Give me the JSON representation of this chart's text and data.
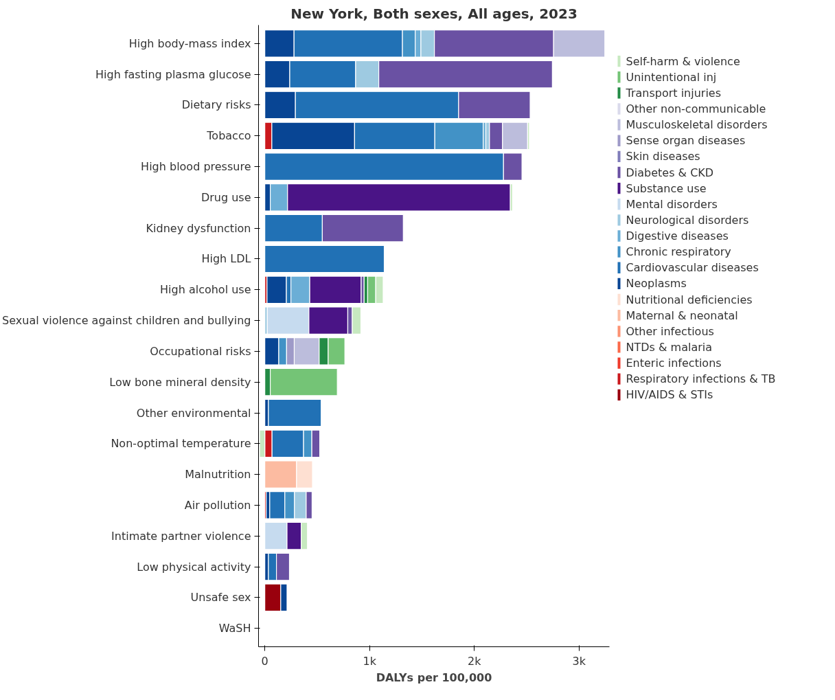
{
  "chart_data": {
    "type": "bar",
    "orientation": "horizontal",
    "stacked": true,
    "title": "New York, Both sexes, All ages, 2023",
    "xlabel": "DALYs per 100,000",
    "categories": [
      "High body-mass index",
      "High fasting plasma glucose",
      "Dietary risks",
      "Tobacco",
      "High blood pressure",
      "Drug use",
      "Kidney dysfunction",
      "High LDL",
      "High alcohol use",
      "Sexual violence against children and bullying",
      "Occupational risks",
      "Low bone mineral density",
      "Other environmental",
      "Non-optimal temperature",
      "Malnutrition",
      "Air pollution",
      "Intimate partner violence",
      "Low physical activity",
      "Unsafe sex",
      "WaSH"
    ],
    "xlim": [
      -60,
      3290
    ],
    "xticks": [
      0,
      {
        "value": 1000,
        "label": "1k"
      },
      {
        "value": 2000,
        "label": "2k"
      },
      {
        "value": 3000,
        "label": "3k"
      }
    ],
    "grid": false,
    "legend": "top right",
    "series": [
      {
        "name": "HIV/AIDS & STIs",
        "color": "#99000d",
        "values": [
          null,
          null,
          null,
          null,
          null,
          null,
          null,
          null,
          null,
          null,
          null,
          null,
          null,
          null,
          null,
          null,
          null,
          null,
          152,
          null
        ]
      },
      {
        "name": "Respiratory infections & TB",
        "color": "#cb181d",
        "values": [
          null,
          null,
          null,
          67,
          null,
          null,
          null,
          null,
          21,
          null,
          null,
          null,
          null,
          69,
          null,
          13,
          null,
          null,
          null,
          null
        ]
      },
      {
        "name": "Enteric infections",
        "color": "#ef3b2c",
        "values": [
          null,
          null,
          null,
          null,
          null,
          null,
          null,
          null,
          null,
          null,
          null,
          null,
          null,
          null,
          null,
          null,
          null,
          null,
          null,
          null
        ]
      },
      {
        "name": "NTDs & malaria",
        "color": "#fb6a4a",
        "values": [
          null,
          null,
          null,
          null,
          null,
          null,
          null,
          null,
          null,
          null,
          null,
          null,
          null,
          null,
          null,
          null,
          null,
          null,
          null,
          null
        ]
      },
      {
        "name": "Other infectious",
        "color": "#fc9272",
        "values": [
          null,
          null,
          null,
          null,
          null,
          null,
          null,
          null,
          null,
          null,
          null,
          null,
          null,
          null,
          null,
          null,
          null,
          null,
          null,
          null
        ]
      },
      {
        "name": "Maternal & neonatal",
        "color": "#fcbba1",
        "values": [
          null,
          null,
          null,
          null,
          null,
          null,
          null,
          null,
          null,
          null,
          null,
          null,
          null,
          null,
          303,
          null,
          null,
          null,
          null,
          null
        ]
      },
      {
        "name": "Nutritional deficiencies",
        "color": "#fee0d2",
        "values": [
          null,
          null,
          null,
          null,
          null,
          null,
          null,
          null,
          null,
          null,
          null,
          null,
          null,
          null,
          152,
          null,
          null,
          null,
          null,
          null
        ]
      },
      {
        "name": "Neoplasms",
        "color": "#084594",
        "values": [
          279,
          238,
          292,
          790,
          null,
          52,
          null,
          null,
          185,
          null,
          133,
          null,
          34,
          null,
          null,
          34,
          null,
          34,
          60,
          null
        ]
      },
      {
        "name": "Cardiovascular diseases",
        "color": "#2171b5",
        "values": [
          1035,
          629,
          1558,
          766,
          2279,
          null,
          549,
          1140,
          43,
          null,
          null,
          null,
          504,
          301,
          null,
          144,
          null,
          77,
          null,
          null
        ]
      },
      {
        "name": "Chronic respiratory",
        "color": "#4292c6",
        "values": [
          122,
          null,
          null,
          462,
          null,
          null,
          null,
          null,
          null,
          null,
          75,
          null,
          null,
          79,
          null,
          92,
          null,
          null,
          null,
          null
        ]
      },
      {
        "name": "Digestive diseases",
        "color": "#6baed6",
        "values": [
          54,
          null,
          null,
          25,
          null,
          165,
          null,
          null,
          180,
          null,
          null,
          null,
          null,
          null,
          null,
          null,
          null,
          null,
          null,
          null
        ]
      },
      {
        "name": "Neurological disorders",
        "color": "#9ecae1",
        "values": [
          129,
          221,
          null,
          35,
          null,
          null,
          null,
          null,
          null,
          24,
          null,
          null,
          null,
          null,
          null,
          112,
          null,
          null,
          null,
          null
        ]
      },
      {
        "name": "Mental disorders",
        "color": "#c6dbef",
        "values": [
          null,
          null,
          null,
          null,
          null,
          null,
          null,
          null,
          null,
          397,
          null,
          null,
          null,
          null,
          null,
          null,
          212,
          null,
          null,
          null
        ]
      },
      {
        "name": "Substance use",
        "color": "#4a1486",
        "values": [
          null,
          null,
          null,
          null,
          null,
          2127,
          null,
          null,
          491,
          371,
          null,
          null,
          null,
          null,
          null,
          null,
          135,
          null,
          null,
          null
        ]
      },
      {
        "name": "Diabetes & CKD",
        "color": "#6a51a3",
        "values": [
          1138,
          1657,
          683,
          124,
          176,
          null,
          773,
          null,
          28,
          43,
          null,
          null,
          null,
          75,
          null,
          56,
          null,
          124,
          null,
          null
        ]
      },
      {
        "name": "Skin diseases",
        "color": "#807dba",
        "values": [
          null,
          null,
          null,
          null,
          null,
          null,
          null,
          null,
          null,
          null,
          null,
          null,
          null,
          null,
          null,
          null,
          null,
          null,
          null,
          null
        ]
      },
      {
        "name": "Sense organ diseases",
        "color": "#9e9ac8",
        "values": [
          null,
          null,
          null,
          null,
          null,
          null,
          null,
          null,
          null,
          null,
          73,
          null,
          null,
          null,
          null,
          null,
          null,
          null,
          null,
          null
        ]
      },
      {
        "name": "Musculoskeletal disorders",
        "color": "#bcbddc",
        "values": [
          489,
          null,
          null,
          240,
          null,
          null,
          null,
          null,
          null,
          null,
          238,
          null,
          null,
          null,
          null,
          null,
          null,
          null,
          null,
          null
        ]
      },
      {
        "name": "Other non-communicable",
        "color": "#dadaeb",
        "values": [
          null,
          null,
          null,
          null,
          null,
          null,
          null,
          null,
          null,
          null,
          null,
          null,
          null,
          null,
          null,
          null,
          null,
          null,
          null,
          null
        ]
      },
      {
        "name": "Transport injuries",
        "color": "#238b45",
        "values": [
          null,
          null,
          null,
          null,
          null,
          null,
          null,
          null,
          34,
          null,
          86,
          52,
          null,
          null,
          null,
          null,
          null,
          null,
          null,
          null
        ]
      },
      {
        "name": "Unintentional inj",
        "color": "#74c476",
        "values": [
          null,
          null,
          null,
          null,
          null,
          null,
          null,
          null,
          77,
          null,
          159,
          640,
          null,
          null,
          null,
          null,
          null,
          null,
          null,
          null
        ]
      },
      {
        "name": "Self-harm & violence",
        "color": "#c7e9c0",
        "values": [
          null,
          null,
          null,
          17,
          null,
          21,
          null,
          null,
          71,
          82,
          null,
          null,
          null,
          -50,
          null,
          null,
          60,
          null,
          null,
          null
        ]
      }
    ]
  }
}
